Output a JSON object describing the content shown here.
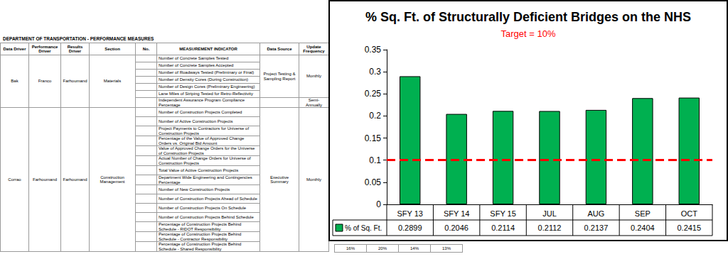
{
  "chart_data": {
    "type": "bar",
    "title": "% Sq. Ft. of Structurally Deficient Bridges on the NHS",
    "subtitle": "Target = 10%",
    "categories": [
      "SFY 13",
      "SFY 14",
      "SFY 15",
      "JUL",
      "AUG",
      "SEP",
      "OCT"
    ],
    "series": [
      {
        "name": "% of Sq. Ft.",
        "color": "#00b050",
        "values": [
          0.2899,
          0.2046,
          0.2114,
          0.2112,
          0.2137,
          0.2404,
          0.2415
        ]
      }
    ],
    "target": {
      "value": 0.1,
      "color": "#ff0000",
      "line_style": "dashed"
    },
    "ylim": [
      0,
      0.35
    ],
    "yticks": [
      0,
      0.05,
      0.1,
      0.15,
      0.2,
      0.25,
      0.3,
      0.35
    ],
    "grid": false
  },
  "table": {
    "title": "DEPARTMENT OF TRANSPORTATION - PERFORMANCE MEASURES",
    "header": [
      "Data Driver",
      "Performance Driver",
      "Results Driver",
      "Section",
      "No.",
      "MEASUREMENT INDICATOR",
      "Data Source",
      "Update Frequency"
    ],
    "groups": [
      {
        "data_driver": "Bak",
        "performance_driver": "Franco",
        "results_driver": "Farhoumand",
        "section": "Materials",
        "blocks": [
          {
            "data_source": "Project Testing & Sampling Report",
            "frequency": "Monthly",
            "indicators": [
              "Number of Concrete Samples Tested",
              "Number of Concrete Samples Accepted",
              "Number of Roadways Tested (Preliminary or Final)",
              "Number of Density Cores (During Construction)",
              "Number of Design Cores (Preliminary Engineering)",
              "Lane Miles of Striping Tested for Retro-Reflectivity"
            ]
          },
          {
            "frequency": "Semi-Annually",
            "indicators": [
              "Independent Assurance Program Compliance Percentage"
            ]
          }
        ]
      },
      {
        "data_driver": "Corrao",
        "performance_driver": "Farhoumand",
        "results_driver": "Farhoumand",
        "section": "Construction Management",
        "blocks": [
          {
            "data_source": "Executive Summary",
            "frequency": "Monthly",
            "indicators": [
              "Number of Construction Projects Completed",
              "Number of Active Construction Projects",
              "Project Payments to Contractors for Universe of Construction Projects",
              "Percentage of the Value of Approved Change Orders vs. Original Bid Amount",
              "Value of Approved Change Orders for the Universe of Construction Projects",
              "Actual Number of Change Orders for Universe of Construction Projects",
              "Total Value of Active Construction Projects",
              "Department Wide Engineering and Contingencies Percentage",
              "Number of New Construction Projects",
              "Number of Construction Projects Ahead of Schedule",
              "Number of Construction Projects On Schedule",
              "Number of Construction Projects Behind Schedule",
              "Percentage of Construction Projects Behind Schedule - RIDOT Responsibility",
              "Percentage of Construction Projects Behind Schedule - Contractor Responsibility",
              "Percentage of Construction Projects Behind Schedule - Shared Responsibility"
            ]
          }
        ]
      }
    ],
    "peek_row": [
      "16%",
      "20%",
      "14%",
      "13%"
    ]
  }
}
